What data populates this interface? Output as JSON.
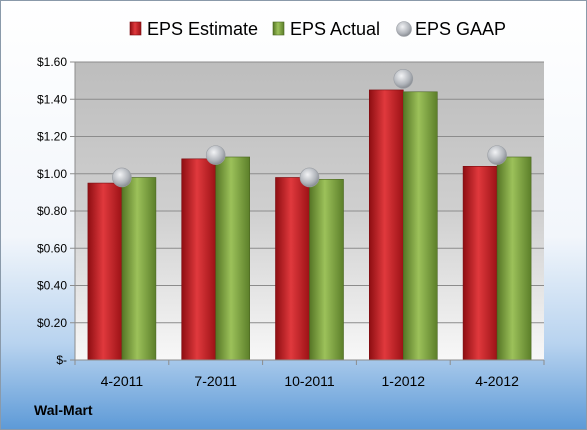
{
  "chart_data": {
    "type": "bar",
    "categories": [
      "4-2011",
      "7-2011",
      "10-2011",
      "1-2012",
      "4-2012"
    ],
    "series": [
      {
        "name": "EPS Estimate",
        "values": [
          0.95,
          1.08,
          0.98,
          1.45,
          1.04
        ],
        "color": "#cc1f26"
      },
      {
        "name": "EPS Actual",
        "values": [
          0.98,
          1.09,
          0.97,
          1.44,
          1.09
        ],
        "color": "#7fa83f"
      },
      {
        "name": "EPS GAAP",
        "values": [
          0.98,
          1.1,
          0.98,
          1.51,
          1.1
        ],
        "color": "#b8bcc2",
        "marker": "circle"
      }
    ],
    "ylim": [
      0,
      1.6
    ],
    "yticks": [
      {
        "value": 0,
        "label": "$-"
      },
      {
        "value": 0.2,
        "label": "$0.20"
      },
      {
        "value": 0.4,
        "label": "$0.40"
      },
      {
        "value": 0.6,
        "label": "$0.60"
      },
      {
        "value": 0.8,
        "label": "$0.80"
      },
      {
        "value": 1.0,
        "label": "$1.00"
      },
      {
        "value": 1.2,
        "label": "$1.20"
      },
      {
        "value": 1.4,
        "label": "$1.40"
      },
      {
        "value": 1.6,
        "label": "$1.60"
      }
    ],
    "grid": true,
    "legend": "top"
  },
  "company": "Wal-Mart"
}
